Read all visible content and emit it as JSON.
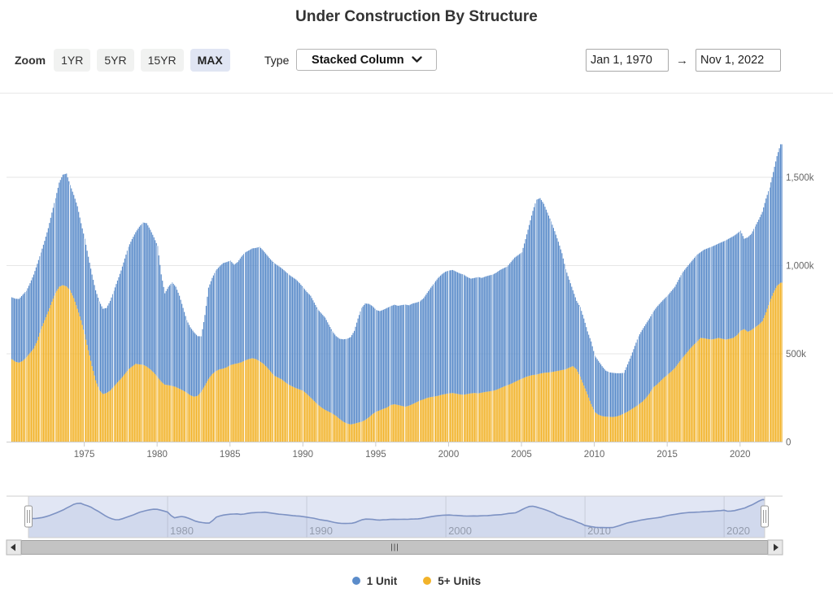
{
  "title": "Under Construction By Structure",
  "controls": {
    "zoom_label": "Zoom",
    "zoom_buttons": [
      "1YR",
      "5YR",
      "15YR",
      "MAX"
    ],
    "zoom_active": "MAX",
    "type_label": "Type",
    "type_value": "Stacked Column",
    "range_start": "Jan 1, 1970",
    "range_arrow": "→",
    "range_end": "Nov 1, 2022"
  },
  "legend": {
    "items": [
      {
        "label": "1 Unit",
        "color": "#5b8cca"
      },
      {
        "label": "5+ Units",
        "color": "#f2b32a"
      }
    ]
  },
  "chart_data": {
    "type": "bar",
    "stacking": "stacked-column",
    "title": "Under Construction By Structure",
    "x_start": "1970-01",
    "x_end": "2022-11",
    "x_resolution": "quarterly values (monthly columns rendered by interpolation)",
    "x_ticks": [
      "1975",
      "1980",
      "1985",
      "1990",
      "1995",
      "2000",
      "2005",
      "2010",
      "2015",
      "2020"
    ],
    "y_ticks": [
      {
        "v": 0,
        "label": "0"
      },
      {
        "v": 500,
        "label": "500k"
      },
      {
        "v": 1000,
        "label": "1,000k"
      },
      {
        "v": 1500,
        "label": "1,500k"
      }
    ],
    "ylim": [
      0,
      1700
    ],
    "y_unit": "thousands of units",
    "grid": true,
    "legend_position": "bottom-center",
    "series": [
      {
        "name": "1 Unit",
        "color": "#5b8cca",
        "values": [
          350,
          357,
          361,
          375,
          377,
          395,
          419,
          435,
          434,
          450,
          472,
          505,
          537,
          590,
          626,
          639,
          596,
          585,
          581,
          550,
          542,
          530,
          519,
          510,
          502,
          483,
          482,
          508,
          542,
          577,
          612,
          655,
          694,
          722,
          746,
          780,
          806,
          812,
          791,
          767,
          743,
          608,
          518,
          558,
          587,
          568,
          527,
          468,
          411,
          385,
          365,
          338,
          314,
          400,
          517,
          545,
          570,
          583,
          598,
          596,
          592,
          563,
          574,
          598,
          612,
          615,
          622,
          630,
          648,
          641,
          636,
          635,
          638,
          634,
          630,
          628,
          624,
          620,
          616,
          602,
          585,
          578,
          577,
          558,
          539,
          532,
          523,
          493,
          466,
          452,
          455,
          467,
          480,
          495,
          526,
          590,
          645,
          660,
          643,
          612,
          576,
          562,
          562,
          564,
          560,
          564,
          562,
          571,
          579,
          569,
          570,
          565,
          562,
          573,
          595,
          620,
          645,
          668,
          682,
          693,
          696,
          697,
          691,
          685,
          681,
          663,
          650,
          652,
          659,
          650,
          654,
          657,
          659,
          664,
          670,
          671,
          673,
          690,
          705,
          710,
          716,
          782,
          855,
          930,
          991,
          994,
          958,
          906,
          854,
          795,
          731,
          662,
          568,
          498,
          430,
          388,
          395,
          380,
          357,
          355,
          319,
          305,
          283,
          261,
          252,
          250,
          245,
          238,
          230,
          268,
          304,
          347,
          387,
          407,
          420,
          425,
          428,
          440,
          443,
          445,
          448,
          455,
          460,
          472,
          483,
          485,
          485,
          487,
          493,
          485,
          502,
          514,
          525,
          530,
          535,
          549,
          562,
          570,
          576,
          575,
          568,
          512,
          535,
          545,
          571,
          595,
          619,
          645,
          647,
          685,
          735,
          784
        ]
      },
      {
        "name": "5+ Units",
        "color": "#f2b32a",
        "values": [
          470,
          455,
          450,
          460,
          480,
          505,
          530,
          575,
          640,
          690,
          740,
          795,
          845,
          880,
          889,
          882,
          860,
          815,
          755,
          690,
          610,
          520,
          430,
          350,
          295,
          272,
          278,
          292,
          315,
          338,
          360,
          385,
          412,
          428,
          443,
          440,
          438,
          428,
          412,
          393,
          368,
          342,
          325,
          322,
          318,
          312,
          302,
          292,
          280,
          265,
          257,
          262,
          285,
          320,
          358,
          385,
          402,
          412,
          416,
          424,
          436,
          442,
          446,
          452,
          462,
          470,
          475,
          470,
          458,
          444,
          424,
          400,
          376,
          366,
          356,
          340,
          325,
          315,
          305,
          298,
          290,
          272,
          252,
          232,
          212,
          196,
          182,
          172,
          161,
          148,
          130,
          115,
          105,
          100,
          104,
          110,
          115,
          125,
          140,
          158,
          172,
          180,
          188,
          196,
          210,
          214,
          210,
          205,
          200,
          206,
          215,
          225,
          235,
          242,
          250,
          255,
          258,
          262,
          268,
          272,
          276,
          278,
          274,
          270,
          268,
          272,
          276,
          278,
          276,
          280,
          284,
          287,
          290,
          296,
          305,
          314,
          322,
          330,
          340,
          350,
          359,
          368,
          375,
          380,
          382,
          388,
          392,
          394,
          396,
          400,
          404,
          408,
          412,
          422,
          430,
          412,
          370,
          320,
          270,
          215,
          170,
          155,
          147,
          144,
          143,
          142,
          145,
          152,
          162,
          172,
          185,
          198,
          212,
          228,
          248,
          275,
          309,
          325,
          345,
          365,
          382,
          400,
          420,
          448,
          475,
          500,
          525,
          548,
          567,
          590,
          588,
          584,
          581,
          585,
          590,
          585,
          581,
          585,
          590,
          605,
          630,
          640,
          625,
          635,
          650,
          665,
          685,
          735,
          795,
          845,
          885,
          903
        ]
      }
    ],
    "navigator": {
      "shows": "total under construction (line)",
      "full_range_selected": true,
      "decade_labels": [
        "1980",
        "1990",
        "2000",
        "2010",
        "2020"
      ]
    }
  }
}
